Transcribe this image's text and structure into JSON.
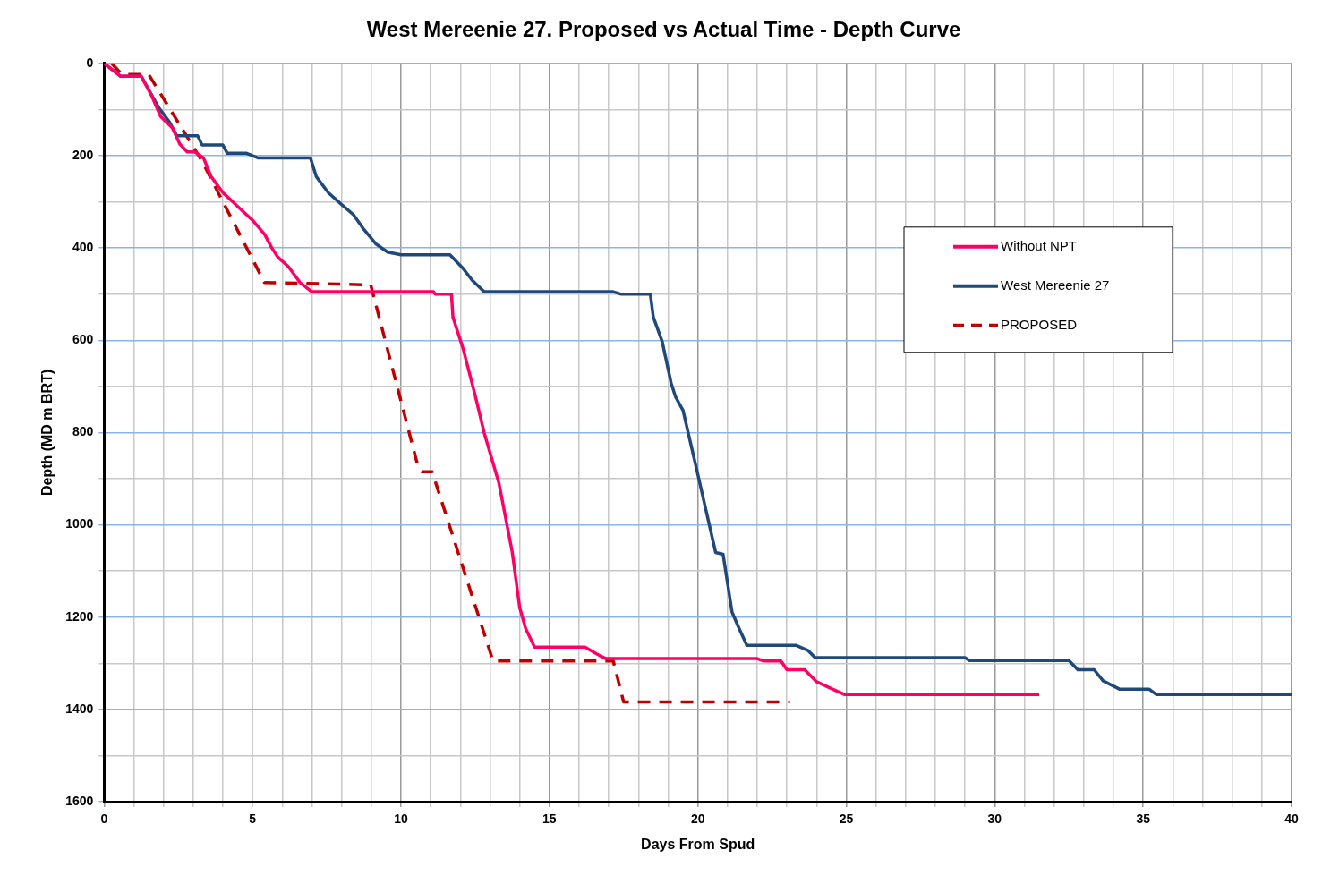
{
  "chart_data": {
    "type": "line",
    "title": "West Mereenie 27. Proposed vs Actual Time - Depth Curve",
    "xlabel": "Days From Spud",
    "ylabel": "Depth (MD m BRT)",
    "xlim": [
      0,
      40
    ],
    "ylim": [
      1600,
      0
    ],
    "xticks": [
      0,
      {
        "value": 1,
        "label": null
      },
      {
        "value": 2,
        "label": null
      },
      {
        "value": 3,
        "label": null
      },
      {
        "value": 4,
        "label": null
      },
      5,
      {
        "value": 6,
        "label": null
      },
      {
        "value": 7,
        "label": null
      },
      {
        "value": 8,
        "label": null
      },
      {
        "value": 9,
        "label": null
      },
      10,
      {
        "value": 11,
        "label": null
      },
      {
        "value": 12,
        "label": null
      },
      {
        "value": 13,
        "label": null
      },
      {
        "value": 14,
        "label": null
      },
      15,
      {
        "value": 16,
        "label": null
      },
      {
        "value": 17,
        "label": null
      },
      {
        "value": 18,
        "label": null
      },
      {
        "value": 19,
        "label": null
      },
      20,
      {
        "value": 21,
        "label": null
      },
      {
        "value": 22,
        "label": null
      },
      {
        "value": 23,
        "label": null
      },
      {
        "value": 24,
        "label": null
      },
      25,
      {
        "value": 26,
        "label": null
      },
      {
        "value": 27,
        "label": null
      },
      {
        "value": 28,
        "label": null
      },
      {
        "value": 29,
        "label": null
      },
      30,
      {
        "value": 31,
        "label": null
      },
      {
        "value": 32,
        "label": null
      },
      {
        "value": 33,
        "label": null
      },
      {
        "value": 34,
        "label": null
      },
      35,
      {
        "value": 36,
        "label": null
      },
      {
        "value": 37,
        "label": null
      },
      {
        "value": 38,
        "label": null
      },
      {
        "value": 39,
        "label": null
      },
      40
    ],
    "yticks": [
      0,
      {
        "value": 100,
        "label": null
      },
      200,
      {
        "value": 300,
        "label": null
      },
      400,
      {
        "value": 500,
        "label": null
      },
      600,
      {
        "value": 700,
        "label": null
      },
      800,
      {
        "value": 900,
        "label": null
      },
      1000,
      {
        "value": 1100,
        "label": null
      },
      1200,
      {
        "value": 1300,
        "label": null
      },
      1400,
      {
        "value": 1500,
        "label": null
      },
      1600
    ],
    "grid": true,
    "legend": "right",
    "marker": "none",
    "series": [
      {
        "name": "Without NPT",
        "color": "#ff0066",
        "line_style": "solid",
        "x": [
          0,
          0.55,
          1.25,
          1.6,
          1.9,
          2.3,
          2.55,
          2.8,
          3.05,
          3.35,
          3.6,
          4.0,
          4.5,
          5.0,
          5.4,
          5.65,
          5.85,
          6.2,
          6.6,
          7.0,
          11.1,
          11.15,
          11.7,
          11.75,
          12.1,
          12.5,
          12.8,
          13.3,
          13.75,
          14.0,
          14.2,
          14.5,
          16.2,
          16.6,
          16.9,
          22.0,
          22.2,
          22.8,
          23.0,
          23.6,
          24.0,
          24.5,
          24.95,
          30.5,
          31.5
        ],
        "values": [
          0,
          28,
          28,
          70,
          115,
          140,
          175,
          192,
          192,
          205,
          245,
          280,
          310,
          340,
          370,
          400,
          420,
          440,
          475,
          495,
          495,
          500,
          500,
          550,
          620,
          720,
          800,
          910,
          1060,
          1180,
          1225,
          1265,
          1265,
          1280,
          1290,
          1290,
          1295,
          1295,
          1314,
          1314,
          1340,
          1355,
          1368,
          1368,
          1368
        ]
      },
      {
        "name": "West Mereenie 27",
        "color": "#1f497d",
        "line_style": "solid",
        "x": [
          0,
          0.55,
          1.25,
          1.85,
          2.2,
          2.45,
          3.15,
          3.3,
          4.0,
          4.15,
          4.8,
          5.2,
          6.95,
          7.15,
          7.55,
          8.0,
          8.4,
          8.75,
          9.15,
          9.55,
          10.0,
          11.65,
          12.1,
          12.4,
          12.8,
          17.15,
          17.4,
          18.4,
          18.5,
          18.8,
          19.1,
          19.25,
          19.5,
          20.0,
          20.35,
          20.6,
          20.85,
          21.15,
          21.35,
          21.65,
          23.3,
          23.7,
          23.95,
          29.0,
          29.15,
          32.5,
          32.8,
          33.35,
          33.65,
          34.2,
          35.2,
          35.45,
          40
        ],
        "values": [
          0,
          28,
          28,
          97,
          127,
          157,
          157,
          177,
          177,
          195,
          195,
          205,
          205,
          246,
          280,
          306,
          328,
          360,
          391,
          409,
          415,
          415,
          445,
          470,
          495,
          495,
          500,
          500,
          550,
          603,
          693,
          723,
          752,
          891,
          990,
          1060,
          1064,
          1189,
          1219,
          1261,
          1261,
          1272,
          1288,
          1288,
          1294,
          1294,
          1314,
          1314,
          1338,
          1356,
          1356,
          1368,
          1368
        ]
      },
      {
        "name": "PROPOSED",
        "color": "#c00000",
        "line_style": "dashed",
        "x": [
          0.25,
          0.6,
          1.5,
          3.3,
          5.4,
          8.98,
          10.55,
          10.7,
          11.05,
          13.1,
          17.15,
          17.5,
          23.1
        ],
        "values": [
          0,
          24,
          24,
          212,
          475,
          480,
          868,
          885,
          885,
          1295,
          1295,
          1384,
          1384
        ]
      }
    ]
  }
}
